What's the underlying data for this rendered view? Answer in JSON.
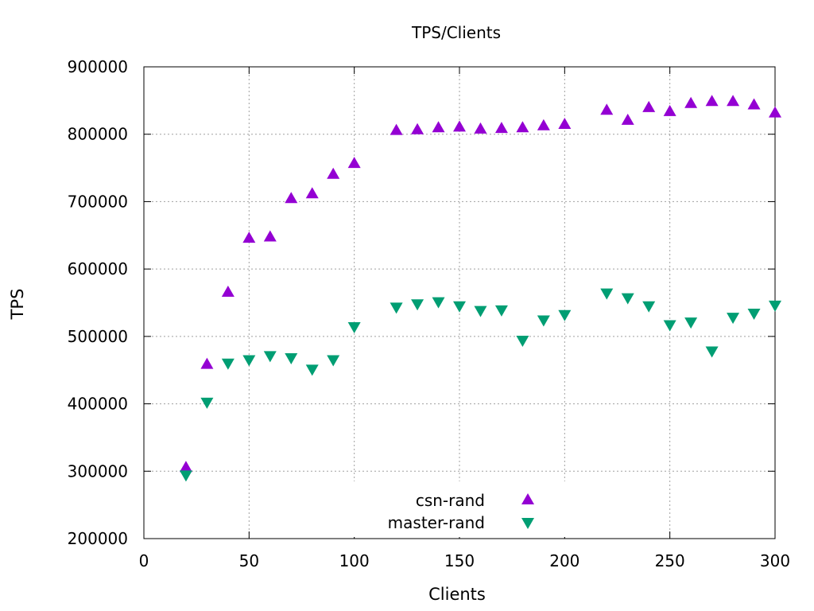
{
  "chart_data": {
    "type": "scatter",
    "title": "TPS/Clients",
    "xlabel": "Clients",
    "ylabel": "TPS",
    "xlim": [
      0,
      300
    ],
    "ylim": [
      200000,
      900000
    ],
    "xticks": [
      0,
      50,
      100,
      150,
      200,
      250,
      300
    ],
    "yticks": [
      200000,
      300000,
      400000,
      500000,
      600000,
      700000,
      800000,
      900000
    ],
    "grid": true,
    "legend_position": "bottom-center",
    "series": [
      {
        "name": "csn-rand",
        "marker": "triangle-up",
        "color": "#9400d3",
        "x": [
          20,
          30,
          40,
          50,
          60,
          70,
          80,
          90,
          100,
          120,
          130,
          140,
          150,
          160,
          170,
          180,
          190,
          200,
          220,
          230,
          240,
          250,
          260,
          270,
          280,
          290,
          300
        ],
        "y": [
          306000,
          459000,
          566000,
          646000,
          648000,
          705000,
          712000,
          741000,
          757000,
          806000,
          807000,
          810000,
          811000,
          808000,
          809000,
          810000,
          813000,
          815000,
          836000,
          821000,
          840000,
          834000,
          846000,
          849000,
          849000,
          844000,
          832000
        ]
      },
      {
        "name": "master-rand",
        "marker": "triangle-down",
        "color": "#009e73",
        "x": [
          20,
          30,
          40,
          50,
          60,
          70,
          80,
          90,
          100,
          120,
          130,
          140,
          150,
          160,
          170,
          180,
          190,
          200,
          220,
          230,
          240,
          250,
          260,
          270,
          280,
          290,
          300
        ],
        "y": [
          294000,
          402000,
          460000,
          465000,
          471000,
          468000,
          451000,
          465000,
          514000,
          543000,
          548000,
          551000,
          545000,
          538000,
          539000,
          494000,
          524000,
          532000,
          564000,
          557000,
          545000,
          517000,
          521000,
          478000,
          528000,
          534000,
          546000
        ]
      }
    ]
  }
}
